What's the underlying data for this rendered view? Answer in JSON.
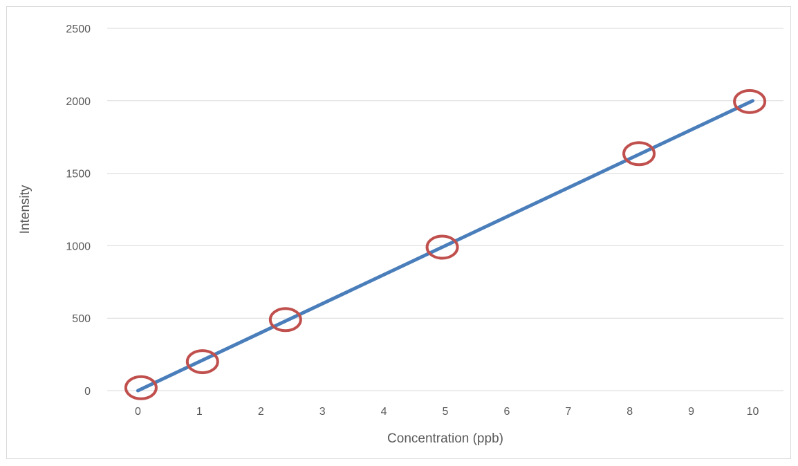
{
  "chart_data": {
    "type": "line",
    "title": "",
    "xlabel": "Concentration (ppb)",
    "ylabel": "Intensity",
    "xlim": [
      -0.5,
      10.5
    ],
    "ylim": [
      0,
      2500
    ],
    "x_ticks": [
      0,
      1,
      2,
      3,
      4,
      5,
      6,
      7,
      8,
      9,
      10
    ],
    "y_ticks": [
      0,
      500,
      1000,
      1500,
      2000,
      2500
    ],
    "grid": true,
    "legend": "none",
    "series": [
      {
        "type": "line",
        "color": "#4a7ebb",
        "x": [
          0,
          10
        ],
        "y": [
          0,
          2000
        ]
      },
      {
        "type": "circle-markers",
        "color": "#c0504d",
        "x": [
          0.05,
          1.05,
          2.4,
          4.95,
          8.15,
          9.95
        ],
        "y": [
          20,
          200,
          490,
          990,
          1635,
          1995
        ]
      }
    ]
  }
}
